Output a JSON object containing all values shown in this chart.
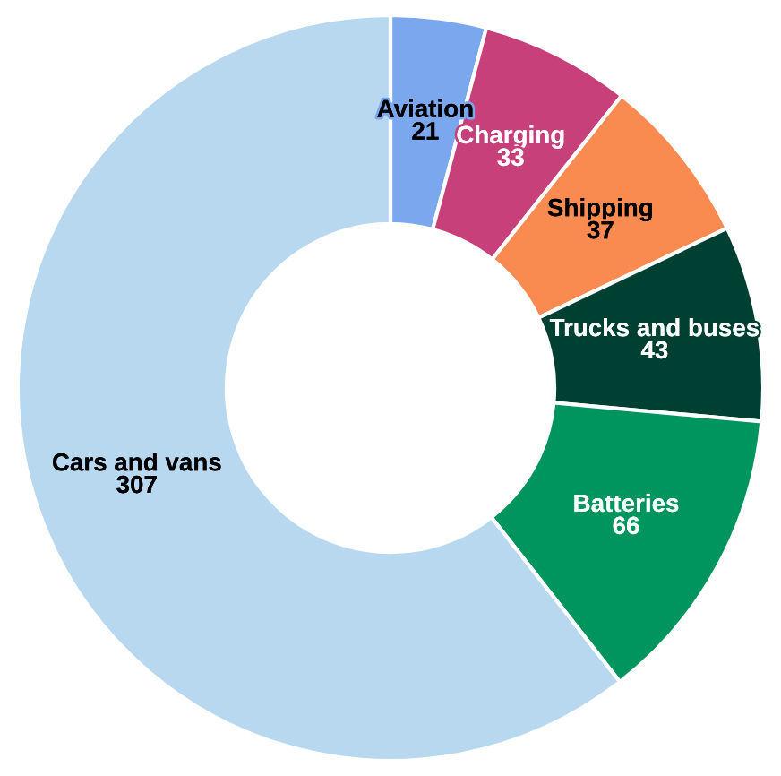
{
  "chart_data": {
    "type": "donut",
    "categories": [
      "Aviation",
      "Charging",
      "Shipping",
      "Trucks and buses",
      "Batteries",
      "Cars and vans"
    ],
    "values": [
      21,
      33,
      37,
      43,
      66,
      307
    ],
    "colors": [
      "#7ba7ee",
      "#c8407a",
      "#f98b50",
      "#004032",
      "#00955e",
      "#b8d8f0"
    ],
    "data_labels": true,
    "legend": false
  }
}
